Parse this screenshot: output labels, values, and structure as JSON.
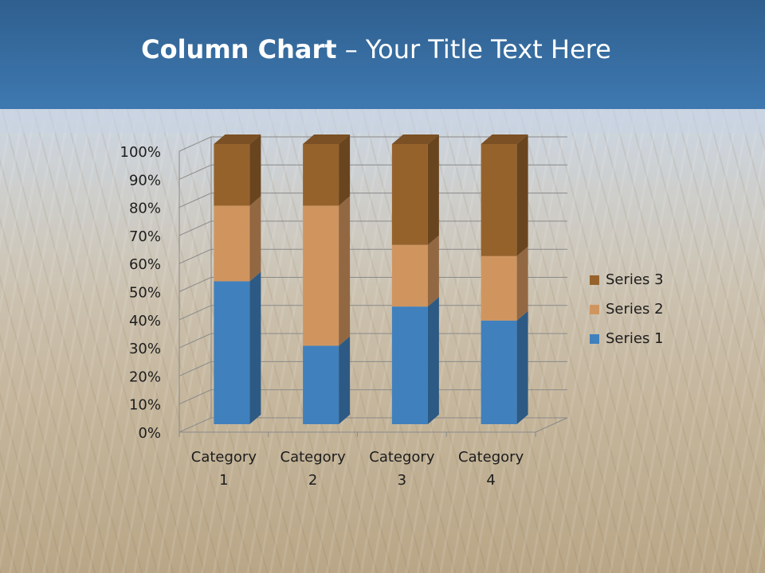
{
  "title": {
    "bold": "Column Chart",
    "rest": " – Your Title Text Here"
  },
  "chart_data": {
    "type": "bar",
    "stacked": true,
    "percent": true,
    "three_d": true,
    "categories": [
      "Category 1",
      "Category 2",
      "Category 3",
      "Category 4"
    ],
    "series": [
      {
        "name": "Series 1",
        "values": [
          51,
          28,
          42,
          37
        ],
        "color": "#4080bd"
      },
      {
        "name": "Series 2",
        "values": [
          27,
          50,
          22,
          23
        ],
        "color": "#d0955f"
      },
      {
        "name": "Series 3",
        "values": [
          22,
          22,
          36,
          40
        ],
        "color": "#96622c"
      }
    ],
    "ylim": [
      0,
      100
    ],
    "yticks": [
      "0%",
      "10%",
      "20%",
      "30%",
      "40%",
      "50%",
      "60%",
      "70%",
      "80%",
      "90%",
      "100%"
    ],
    "legend_position": "right",
    "grid": true
  }
}
